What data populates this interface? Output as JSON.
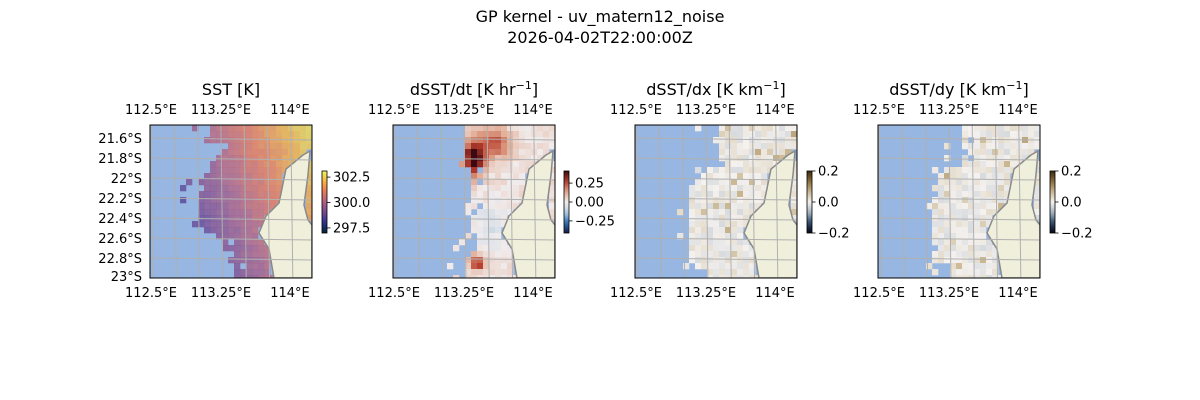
{
  "figure": {
    "title_line1": "GP kernel - uv_matern12_noise",
    "title_line2": "2026-04-02T22:00:00Z"
  },
  "chart_data": [
    {
      "type": "heatmap",
      "title": "SST [K]",
      "title_main": "SST [K]",
      "title_sup": "",
      "title_end": "",
      "lon_ticks": [
        "112.5°E",
        "113.25°E",
        "114°E"
      ],
      "lat_ticks": [
        "21.6°S",
        "21.8°S",
        "22°S",
        "22.2°S",
        "22.4°S",
        "22.6°S",
        "22.8°S",
        "23°S"
      ],
      "show_lat_labels": true,
      "colorbar": {
        "ticks": [
          "302.5",
          "300.0",
          "297.5"
        ],
        "tick_values": [
          302.5,
          300.0,
          297.5
        ],
        "range": [
          297.0,
          303.1
        ],
        "colormap": "thermal"
      },
      "field": "sst"
    },
    {
      "type": "heatmap",
      "title": "dSST/dt [K hr−1]",
      "title_main": "dSST/dt [K hr",
      "title_sup": "−1",
      "title_end": "]",
      "lon_ticks": [
        "112.5°E",
        "113.25°E",
        "114°E"
      ],
      "lat_ticks": [],
      "show_lat_labels": false,
      "colorbar": {
        "ticks": [
          "0.25",
          "0.00",
          "−0.25"
        ],
        "tick_values": [
          0.25,
          0.0,
          -0.25
        ],
        "range": [
          -0.41,
          0.41
        ],
        "colormap": "balance"
      },
      "field": "dt"
    },
    {
      "type": "heatmap",
      "title": "dSST/dx [K km−1]",
      "title_main": "dSST/dx [K km",
      "title_sup": "−1",
      "title_end": "]",
      "lon_ticks": [
        "112.5°E",
        "113.25°E",
        "114°E"
      ],
      "lat_ticks": [],
      "show_lat_labels": false,
      "colorbar": {
        "ticks": [
          "0.2",
          "0.0",
          "−0.2"
        ],
        "tick_values": [
          0.2,
          0.0,
          -0.2
        ],
        "range": [
          -0.2,
          0.2
        ],
        "colormap": "diff"
      },
      "field": "dx"
    },
    {
      "type": "heatmap",
      "title": "dSST/dy [K km−1]",
      "title_main": "dSST/dy [K km",
      "title_sup": "−1",
      "title_end": "]",
      "lon_ticks": [
        "112.5°E",
        "113.25°E",
        "114°E"
      ],
      "lat_ticks": [],
      "show_lat_labels": false,
      "colorbar": {
        "ticks": [
          "0.2",
          "0.0",
          "−0.2"
        ],
        "tick_values": [
          0.2,
          0.0,
          -0.2
        ],
        "range": [
          -0.2,
          0.2
        ],
        "colormap": "diff"
      },
      "field": "dy"
    }
  ],
  "colors": {
    "ocean": "#97b6e1",
    "land": "#efefdb",
    "coast": "#8a8a8a",
    "grid": "#b0b0b0"
  }
}
